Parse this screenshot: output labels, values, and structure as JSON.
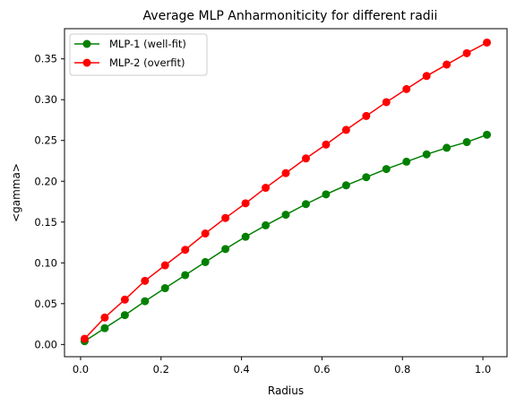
{
  "chart_data": {
    "type": "line",
    "title": "Average MLP Anharmoniticity for different radii",
    "xlabel": "Radius",
    "ylabel": "<gamma>",
    "xlim": [
      -0.04,
      1.06
    ],
    "ylim": [
      -0.015,
      0.387
    ],
    "xticks": [
      0.0,
      0.2,
      0.4,
      0.6,
      0.8,
      1.0
    ],
    "xtick_labels": [
      "0.0",
      "0.2",
      "0.4",
      "0.6",
      "0.8",
      "1.0"
    ],
    "yticks": [
      0.0,
      0.05,
      0.1,
      0.15,
      0.2,
      0.25,
      0.3,
      0.35
    ],
    "ytick_labels": [
      "0.00",
      "0.05",
      "0.10",
      "0.15",
      "0.20",
      "0.25",
      "0.30",
      "0.35"
    ],
    "grid": false,
    "legend_position": "upper-left",
    "x": [
      0.01,
      0.06,
      0.11,
      0.16,
      0.21,
      0.26,
      0.31,
      0.36,
      0.41,
      0.46,
      0.51,
      0.56,
      0.61,
      0.66,
      0.71,
      0.76,
      0.81,
      0.86,
      0.91,
      0.96,
      1.01
    ],
    "series": [
      {
        "name": "MLP-1 (well-fit)",
        "color": "#008000",
        "values": [
          0.004,
          0.02,
          0.036,
          0.053,
          0.069,
          0.085,
          0.101,
          0.117,
          0.132,
          0.146,
          0.159,
          0.172,
          0.184,
          0.195,
          0.205,
          0.215,
          0.224,
          0.233,
          0.241,
          0.248,
          0.257
        ]
      },
      {
        "name": "MLP-2 (overfit)",
        "color": "#ff0000",
        "values": [
          0.007,
          0.033,
          0.055,
          0.078,
          0.097,
          0.116,
          0.136,
          0.155,
          0.173,
          0.192,
          0.21,
          0.228,
          0.245,
          0.263,
          0.28,
          0.297,
          0.313,
          0.329,
          0.343,
          0.357,
          0.37
        ]
      }
    ]
  }
}
